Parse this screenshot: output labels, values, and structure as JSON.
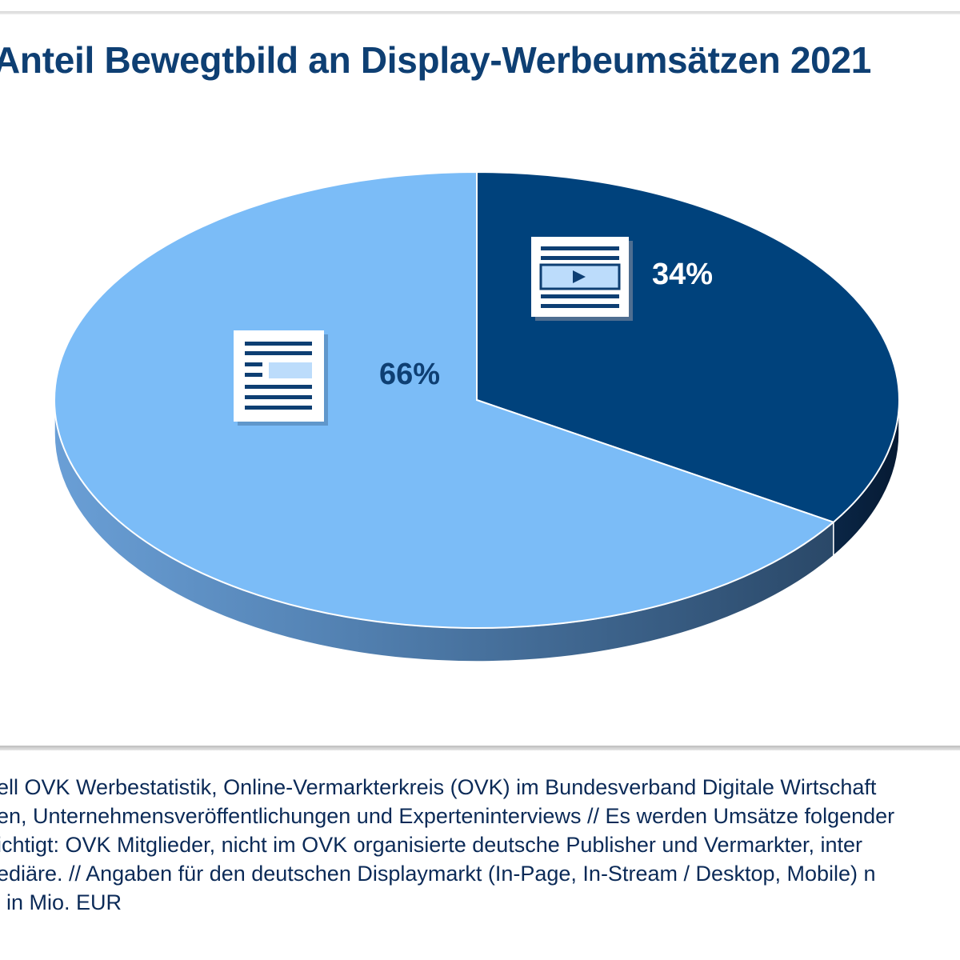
{
  "chart_data": {
    "type": "pie",
    "title": "Anteil Bewegtbild an Display-Werbeumsätzen 2021",
    "slices": [
      {
        "name": "",
        "value": 34,
        "label": "34%",
        "icon": "video-ad-icon",
        "color": "#00427c"
      },
      {
        "name": "",
        "value": 66,
        "label": "66%",
        "icon": "display-ad-icon",
        "color": "#7bbcf7"
      }
    ],
    "legend": "none",
    "style": "3d"
  },
  "footnote": {
    "lines": [
      "ell OVK Werbestatistik, Online-Vermarkterkreis (OVK) im Bundesverband Digitale Wirtschaft",
      "en, Unternehmensveröffentlichungen und Experteninterviews // Es werden Umsätze folgender",
      "ichtigt: OVK Mitglieder, nicht im OVK organisierte deutsche Publisher und Vermarkter, inter",
      "ediäre. // Angaben für den deutschen Displaymarkt (In-Page, In-Stream / Desktop, Mobile) n",
      "in Mio. EUR"
    ]
  }
}
